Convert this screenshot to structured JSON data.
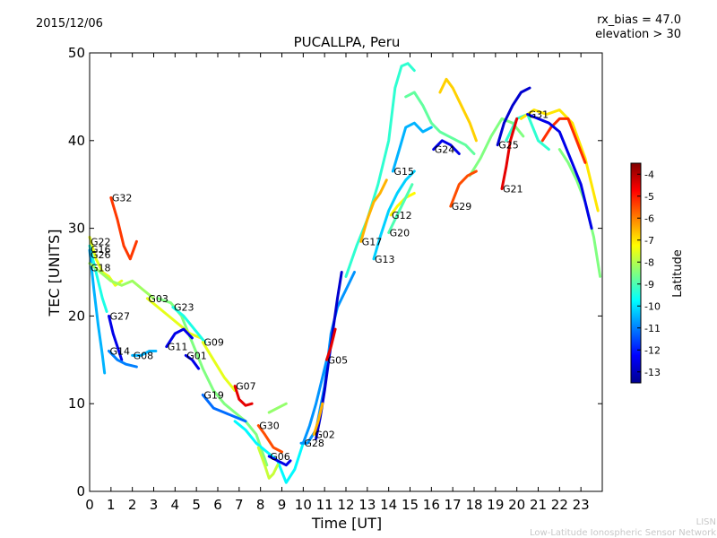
{
  "header": {
    "date": "2015/12/06",
    "rx_bias": "rx_bias = 47.0",
    "elevation": "elevation > 30"
  },
  "credits": {
    "line1": "LISN",
    "line2": "Low-Latitude Ionospheric Sensor Network"
  },
  "chart_data": {
    "type": "line",
    "title": "PUCALLPA, Peru",
    "xlabel": "Time [UT]",
    "ylabel": "TEC [UNITS]",
    "xlim": [
      0,
      24
    ],
    "ylim": [
      0,
      50
    ],
    "xticks": [
      "0",
      "1",
      "2",
      "3",
      "4",
      "5",
      "6",
      "7",
      "8",
      "9",
      "10",
      "11",
      "12",
      "13",
      "14",
      "15",
      "16",
      "17",
      "18",
      "19",
      "20",
      "21",
      "22",
      "23"
    ],
    "yticks": [
      "0",
      "10",
      "20",
      "30",
      "40",
      "50"
    ],
    "colorbar": {
      "label": "Latitude",
      "range": [
        -13.5,
        -3.5
      ],
      "ticks": [
        "-4",
        "-5",
        "-6",
        "-7",
        "-8",
        "-9",
        "-10",
        "-11",
        "-12",
        "-13"
      ],
      "colors": [
        "#00008f",
        "#0000ff",
        "#0080ff",
        "#00ffff",
        "#80ff80",
        "#ffff00",
        "#ff8000",
        "#ff0000",
        "#800000"
      ]
    },
    "series": [
      {
        "name": "G32",
        "lat": -5.3,
        "x": [
          1.0,
          1.3,
          1.6,
          1.9,
          2.2
        ],
        "y": [
          33.5,
          31.0,
          28.0,
          26.5,
          28.5
        ],
        "label_at": [
          1.0,
          33.5
        ]
      },
      {
        "name": "G22",
        "lat": -7.5,
        "x": [
          0.0,
          0.3,
          0.6,
          0.9,
          1.2,
          1.5
        ],
        "y": [
          29.0,
          26.5,
          25.0,
          24.5,
          23.5,
          24.0
        ],
        "label_at": [
          0.0,
          28.5
        ]
      },
      {
        "name": "G16",
        "lat": -9.5,
        "x": [
          0.0,
          0.2,
          0.4,
          0.6,
          0.8
        ],
        "y": [
          28.0,
          26.0,
          24.0,
          22.0,
          20.5
        ],
        "label_at": [
          0.0,
          27.6
        ]
      },
      {
        "name": "G26",
        "lat": -10.5,
        "x": [
          0.0,
          0.2,
          0.4,
          0.6,
          0.7
        ],
        "y": [
          27.5,
          23.0,
          19.0,
          15.5,
          13.5
        ],
        "label_at": [
          0.0,
          27.0
        ]
      },
      {
        "name": "G18",
        "lat": -8.2,
        "x": [
          0.0,
          0.5,
          1.0,
          1.5,
          2.0,
          2.5,
          3.0
        ],
        "y": [
          26.0,
          25.0,
          24.0,
          23.5,
          24.0,
          23.0,
          22.0
        ],
        "label_at": [
          0.0,
          25.5
        ]
      },
      {
        "name": "G27",
        "lat": -12.5,
        "x": [
          0.9,
          1.1,
          1.3,
          1.5
        ],
        "y": [
          20.0,
          18.0,
          16.5,
          15.0
        ],
        "label_at": [
          0.9,
          20.0
        ]
      },
      {
        "name": "G14",
        "lat": -11.0,
        "x": [
          0.9,
          1.3,
          1.7,
          2.2
        ],
        "y": [
          16.0,
          15.0,
          14.5,
          14.2
        ],
        "label_at": [
          0.9,
          16.0
        ]
      },
      {
        "name": "G08",
        "lat": -10.5,
        "x": [
          2.0,
          2.4,
          2.8,
          3.1
        ],
        "y": [
          15.5,
          15.5,
          16.0,
          16.0
        ],
        "label_at": [
          2.0,
          15.5
        ]
      },
      {
        "name": "G03",
        "lat": -7.5,
        "x": [
          2.7,
          3.2,
          3.7,
          4.2,
          4.7,
          5.2
        ],
        "y": [
          22.0,
          21.0,
          20.0,
          19.0,
          18.0,
          17.5
        ],
        "label_at": [
          2.7,
          22.0
        ]
      },
      {
        "name": "G23",
        "lat": -9.5,
        "x": [
          3.9,
          4.4,
          4.9,
          5.4
        ],
        "y": [
          21.0,
          20.0,
          18.5,
          17.0
        ],
        "label_at": [
          3.9,
          21.0
        ]
      },
      {
        "name": "G11",
        "lat": -12.5,
        "x": [
          3.6,
          4.0,
          4.4,
          4.8
        ],
        "y": [
          16.5,
          18.0,
          18.5,
          17.5
        ],
        "label_at": [
          3.6,
          16.5
        ]
      },
      {
        "name": "G01",
        "lat": -12.5,
        "x": [
          4.5,
          4.8,
          5.1
        ],
        "y": [
          15.5,
          15.0,
          14.0
        ],
        "label_at": [
          4.5,
          15.5
        ]
      },
      {
        "name": "G09",
        "lat": -7.5,
        "x": [
          5.3,
          5.8,
          6.3,
          6.8
        ],
        "y": [
          17.0,
          15.0,
          13.0,
          11.5
        ],
        "label_at": [
          5.3,
          17.0
        ]
      },
      {
        "name": "G19",
        "lat": -11.2,
        "x": [
          5.3,
          5.8,
          6.3,
          6.8,
          7.3
        ],
        "y": [
          11.0,
          9.5,
          9.0,
          8.5,
          8.0
        ],
        "label_at": [
          5.3,
          11.0
        ]
      },
      {
        "name": "G07",
        "lat": -4.5,
        "x": [
          6.8,
          7.0,
          7.3,
          7.6
        ],
        "y": [
          12.0,
          10.5,
          9.8,
          10.0
        ],
        "label_at": [
          6.8,
          12.0
        ]
      },
      {
        "name": "G30",
        "lat": -5.5,
        "x": [
          7.9,
          8.2,
          8.6,
          9.0
        ],
        "y": [
          7.5,
          6.5,
          5.0,
          4.5
        ],
        "label_at": [
          7.9,
          7.5
        ]
      },
      {
        "name": "G06",
        "lat": -12.5,
        "x": [
          8.4,
          8.8,
          9.2,
          9.4
        ],
        "y": [
          4.0,
          3.5,
          3.0,
          3.5
        ],
        "label_at": [
          8.4,
          4.0
        ]
      },
      {
        "name": "G28",
        "lat": -10.8,
        "x": [
          10.0,
          10.3,
          10.6,
          10.9,
          11.1
        ],
        "y": [
          5.5,
          7.5,
          10.0,
          13.0,
          15.0
        ],
        "label_at": [
          10.0,
          5.5
        ]
      },
      {
        "name": "G02",
        "lat": -6.5,
        "x": [
          10.5,
          10.7,
          10.9
        ],
        "y": [
          6.5,
          8.0,
          10.0
        ],
        "label_at": [
          10.5,
          6.5
        ]
      },
      {
        "name": "G05",
        "lat": -4.5,
        "x": [
          11.1,
          11.3,
          11.5
        ],
        "y": [
          15.0,
          16.5,
          18.5
        ],
        "label_at": [
          11.1,
          15.0
        ]
      },
      {
        "name": "G17",
        "lat": -6.5,
        "x": [
          12.7,
          13.0,
          13.3,
          13.6,
          13.9
        ],
        "y": [
          28.5,
          31.0,
          33.0,
          34.0,
          35.5
        ],
        "label_at": [
          12.7,
          28.5
        ]
      },
      {
        "name": "G13",
        "lat": -10.2,
        "x": [
          13.3,
          13.6,
          14.0,
          14.4,
          14.8,
          15.2
        ],
        "y": [
          26.5,
          29.0,
          32.0,
          34.0,
          35.5,
          36.5
        ],
        "label_at": [
          13.3,
          26.5
        ]
      },
      {
        "name": "G15",
        "lat": -10.5,
        "x": [
          14.2,
          14.5,
          14.8,
          15.2,
          15.6,
          16.0
        ],
        "y": [
          36.5,
          39.0,
          41.5,
          42.0,
          41.0,
          41.5
        ],
        "label_at": [
          14.2,
          36.5
        ]
      },
      {
        "name": "G12",
        "lat": -7.2,
        "x": [
          14.1,
          14.4,
          14.8,
          15.2
        ],
        "y": [
          31.5,
          32.5,
          33.5,
          34.0
        ],
        "label_at": [
          14.1,
          31.5
        ]
      },
      {
        "name": "G20",
        "lat": -9.0,
        "x": [
          14.0,
          14.3,
          14.7,
          15.1
        ],
        "y": [
          29.5,
          31.0,
          33.0,
          35.0
        ],
        "label_at": [
          14.0,
          29.5
        ]
      },
      {
        "name": "G24",
        "lat": -12.5,
        "x": [
          16.1,
          16.5,
          16.9,
          17.3
        ],
        "y": [
          39.0,
          40.0,
          39.5,
          38.5
        ],
        "label_at": [
          16.1,
          39.0
        ]
      },
      {
        "name": "G29",
        "lat": -5.5,
        "x": [
          16.9,
          17.3,
          17.7,
          18.1
        ],
        "y": [
          32.5,
          35.0,
          36.0,
          36.5
        ],
        "label_at": [
          16.9,
          32.5
        ]
      },
      {
        "name": "G25",
        "lat": -12.8,
        "x": [
          19.1,
          19.4,
          19.8,
          20.2,
          20.6
        ],
        "y": [
          39.5,
          42.0,
          44.0,
          45.5,
          46.0
        ],
        "label_at": [
          19.1,
          39.5
        ]
      },
      {
        "name": "G21",
        "lat": -4.5,
        "x": [
          19.3,
          19.5,
          19.7,
          20.0
        ],
        "y": [
          34.5,
          37.0,
          40.0,
          42.5
        ],
        "label_at": [
          19.3,
          34.5
        ]
      },
      {
        "name": "G31",
        "lat": -12.5,
        "x": [
          20.5,
          21.0,
          21.5,
          22.0,
          22.5,
          23.0,
          23.5
        ],
        "y": [
          43.0,
          42.5,
          42.0,
          41.0,
          38.0,
          35.0,
          30.0
        ],
        "label_at": [
          20.5,
          43.0
        ]
      }
    ],
    "unlabeled_series": [
      {
        "lat": -8.5,
        "x": [
          3.2,
          3.8,
          4.3,
          4.8,
          5.3,
          5.8,
          6.3,
          6.8,
          7.3,
          7.8,
          8.3
        ],
        "y": [
          22.0,
          21.5,
          20.0,
          17.0,
          14.0,
          11.5,
          10.0,
          9.0,
          8.0,
          6.5,
          3.0
        ]
      },
      {
        "lat": -9.8,
        "x": [
          6.8,
          7.3,
          7.8,
          8.3,
          8.8,
          9.2,
          9.6,
          10.0
        ],
        "y": [
          8.0,
          7.0,
          5.5,
          4.5,
          3.5,
          1.0,
          2.5,
          5.5
        ]
      },
      {
        "lat": -7.8,
        "x": [
          7.9,
          8.2,
          8.4,
          8.6,
          8.8
        ],
        "y": [
          5.0,
          3.0,
          1.5,
          2.0,
          3.0
        ]
      },
      {
        "lat": -8.3,
        "x": [
          8.4,
          8.8,
          9.2
        ],
        "y": [
          9.0,
          9.5,
          10.0
        ]
      },
      {
        "lat": -10.8,
        "x": [
          9.9,
          10.2,
          10.6,
          11.0,
          11.3,
          11.6,
          12.0,
          12.4
        ],
        "y": [
          5.5,
          5.5,
          7.0,
          12.0,
          18.0,
          21.0,
          23.0,
          25.0
        ]
      },
      {
        "lat": -12.8,
        "x": [
          10.6,
          10.8,
          11.0,
          11.2,
          11.4,
          11.6,
          11.8
        ],
        "y": [
          6.0,
          8.5,
          11.5,
          15.0,
          18.5,
          22.0,
          25.0
        ]
      },
      {
        "lat": -9.3,
        "x": [
          12.0,
          12.5,
          13.0,
          13.5,
          14.0,
          14.3,
          14.6,
          14.9,
          15.2
        ],
        "y": [
          24.5,
          28.0,
          31.0,
          35.0,
          40.0,
          46.0,
          48.5,
          48.8,
          48.0
        ]
      },
      {
        "lat": -8.8,
        "x": [
          14.8,
          15.2,
          15.6,
          16.0,
          16.4,
          16.8,
          17.2,
          17.6,
          18.0
        ],
        "y": [
          45.0,
          45.5,
          44.0,
          42.0,
          41.0,
          40.5,
          40.0,
          39.5,
          38.5
        ]
      },
      {
        "lat": -6.8,
        "x": [
          16.4,
          16.7,
          17.0,
          17.4,
          17.8,
          18.1
        ],
        "y": [
          45.5,
          47.0,
          46.0,
          44.0,
          42.0,
          40.0
        ]
      },
      {
        "lat": -8.5,
        "x": [
          17.8,
          18.3,
          18.8,
          19.3,
          19.8,
          20.3
        ],
        "y": [
          36.0,
          38.0,
          40.5,
          42.5,
          42.0,
          40.5
        ]
      },
      {
        "lat": -9.3,
        "x": [
          19.5,
          20.0,
          20.5,
          21.0,
          21.5
        ],
        "y": [
          40.0,
          42.5,
          43.0,
          40.0,
          39.0
        ]
      },
      {
        "lat": -7.0,
        "x": [
          20.2,
          20.8,
          21.4,
          22.0,
          22.6,
          23.2,
          23.8
        ],
        "y": [
          42.5,
          43.5,
          43.0,
          43.5,
          42.0,
          38.0,
          32.0
        ]
      },
      {
        "lat": -5.2,
        "x": [
          21.2,
          21.6,
          22.0,
          22.4,
          22.8,
          23.2
        ],
        "y": [
          40.0,
          41.5,
          42.5,
          42.5,
          40.0,
          37.5
        ]
      },
      {
        "lat": -8.5,
        "x": [
          22.0,
          22.4,
          22.8,
          23.2,
          23.6,
          23.9
        ],
        "y": [
          39.0,
          37.5,
          35.5,
          33.0,
          29.0,
          24.5
        ]
      }
    ]
  }
}
